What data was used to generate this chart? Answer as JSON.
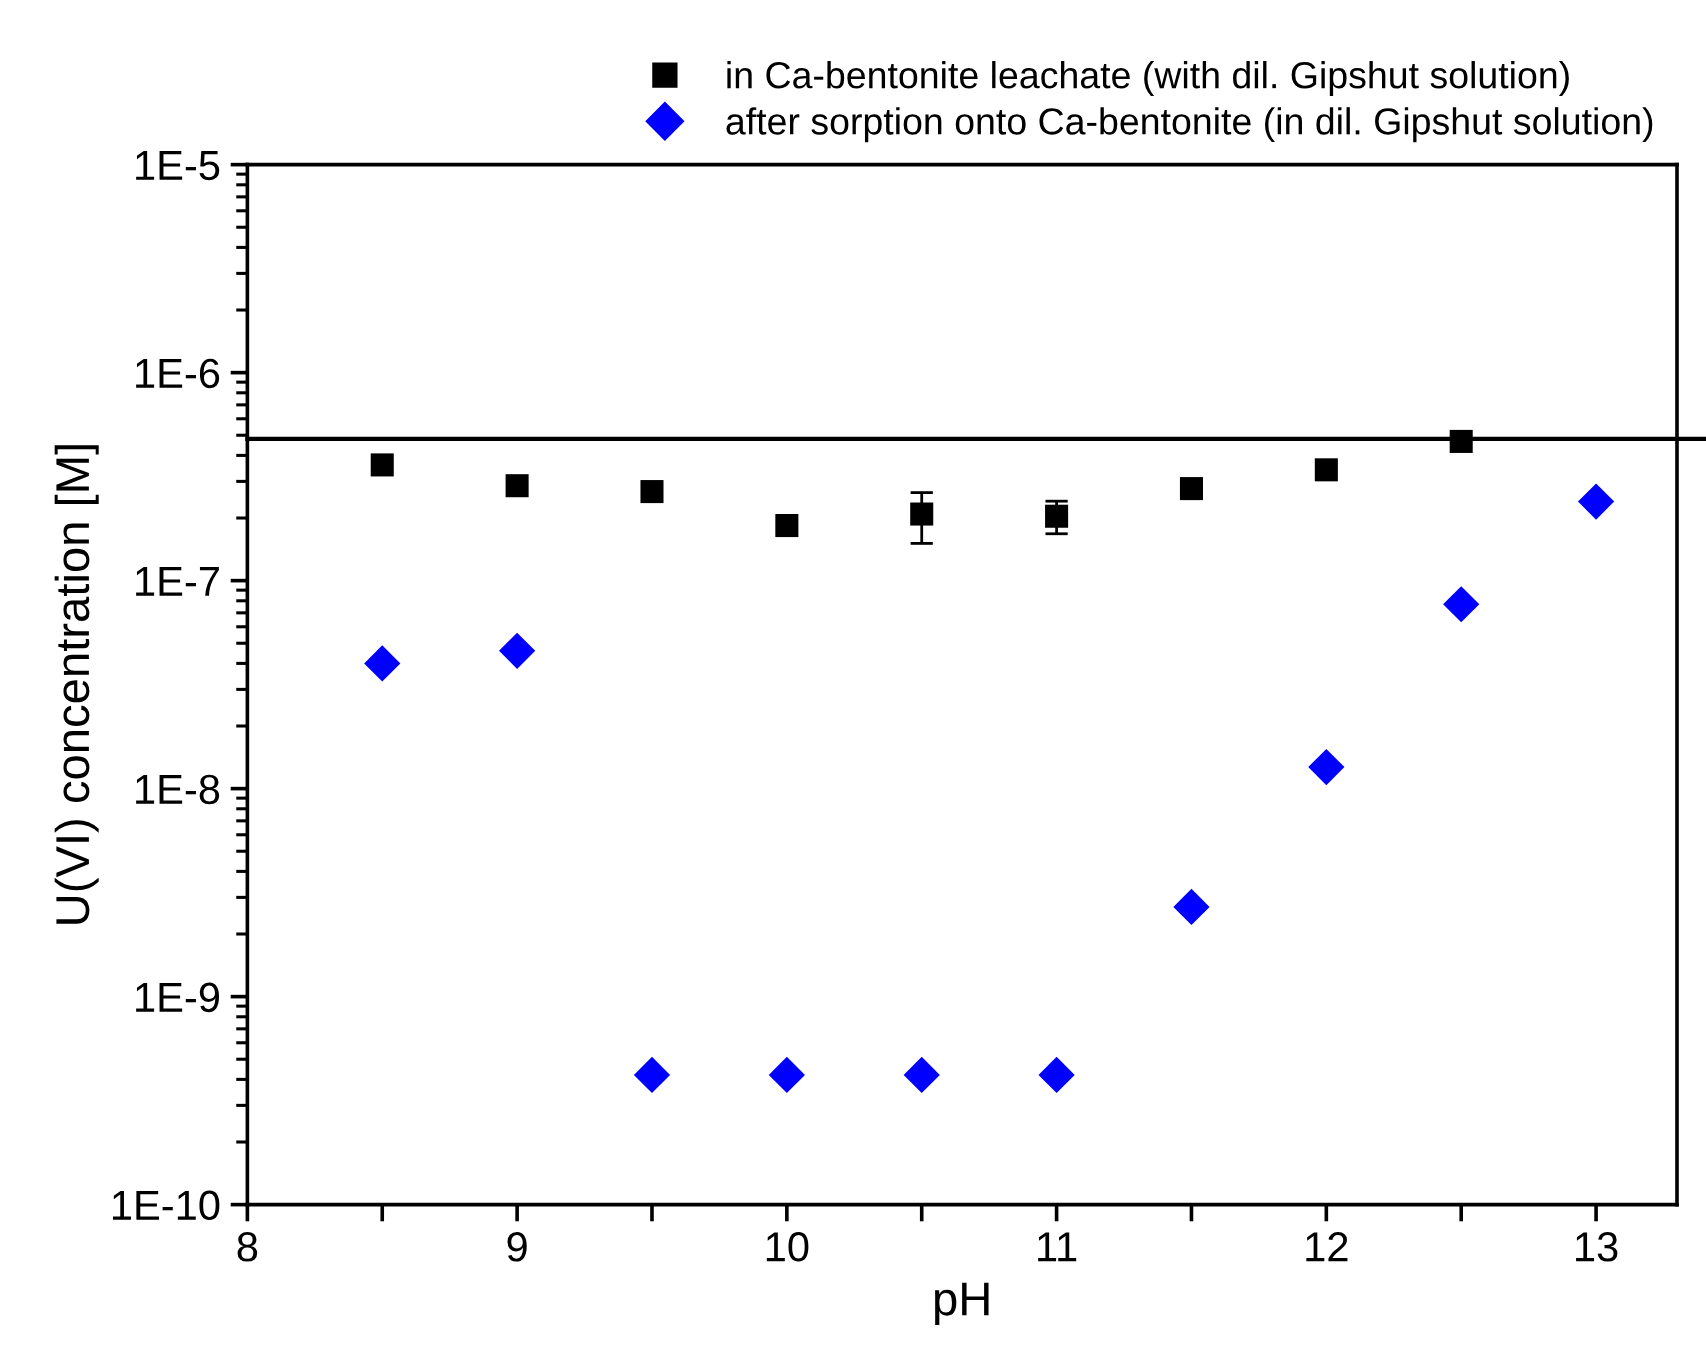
{
  "chart_data": {
    "type": "scatter",
    "xlabel": "pH",
    "ylabel": "U(VI) concentration [M]",
    "log": "y",
    "xlim": [
      8,
      13.3
    ],
    "ylim": [
      1e-10,
      1e-05
    ],
    "xticks": [
      8,
      {
        "value": 8.5,
        "label": null
      },
      9,
      {
        "value": 9.5,
        "label": null
      },
      10,
      {
        "value": 10.5,
        "label": null
      },
      11,
      {
        "value": 11.5,
        "label": null
      },
      12,
      {
        "value": 12.5,
        "label": null
      },
      13
    ],
    "yticks": [
      {
        "value": 1e-10,
        "label": "1E-10"
      },
      {
        "value": 1e-09,
        "label": "1E-9"
      },
      {
        "value": 1e-08,
        "label": "1E-8"
      },
      {
        "value": 1e-07,
        "label": "1E-7"
      },
      {
        "value": 1e-06,
        "label": "1E-6"
      },
      {
        "value": 1e-05,
        "label": "1E-5"
      }
    ],
    "grid": false,
    "legend": "top",
    "ref_lines": [
      {
        "axis": "y",
        "value": 4.8e-07,
        "label": null,
        "color": "#000000"
      }
    ],
    "series": [
      {
        "name": "in Ca-bentonite leachate (with dil. Gipshut solution)",
        "color": "#000000",
        "marker": "square",
        "x": [
          8.5,
          9,
          9.5,
          10,
          10.5,
          11,
          11.5,
          12,
          12.5
        ],
        "values": [
          3.6e-07,
          2.86e-07,
          2.68e-07,
          1.84e-07,
          2.09e-07,
          2.04e-07,
          2.77e-07,
          3.41e-07,
          4.67e-07
        ],
        "errors": [
          null,
          null,
          null,
          null,
          [
            1.51e-07,
            2.65e-07
          ],
          [
            1.68e-07,
            2.41e-07
          ],
          null,
          null,
          null
        ]
      },
      {
        "name": "after sorption onto Ca-bentonite (in dil. Gipshut solution)",
        "color": "#0000ff",
        "marker": "diamond",
        "x": [
          8.5,
          9,
          9.5,
          10,
          10.5,
          11,
          11.5,
          12,
          12.5,
          13
        ],
        "values": [
          4e-08,
          4.6e-08,
          4.2e-10,
          4.2e-10,
          4.2e-10,
          4.2e-10,
          2.7e-09,
          1.27e-08,
          7.7e-08,
          2.4e-07
        ]
      }
    ]
  }
}
